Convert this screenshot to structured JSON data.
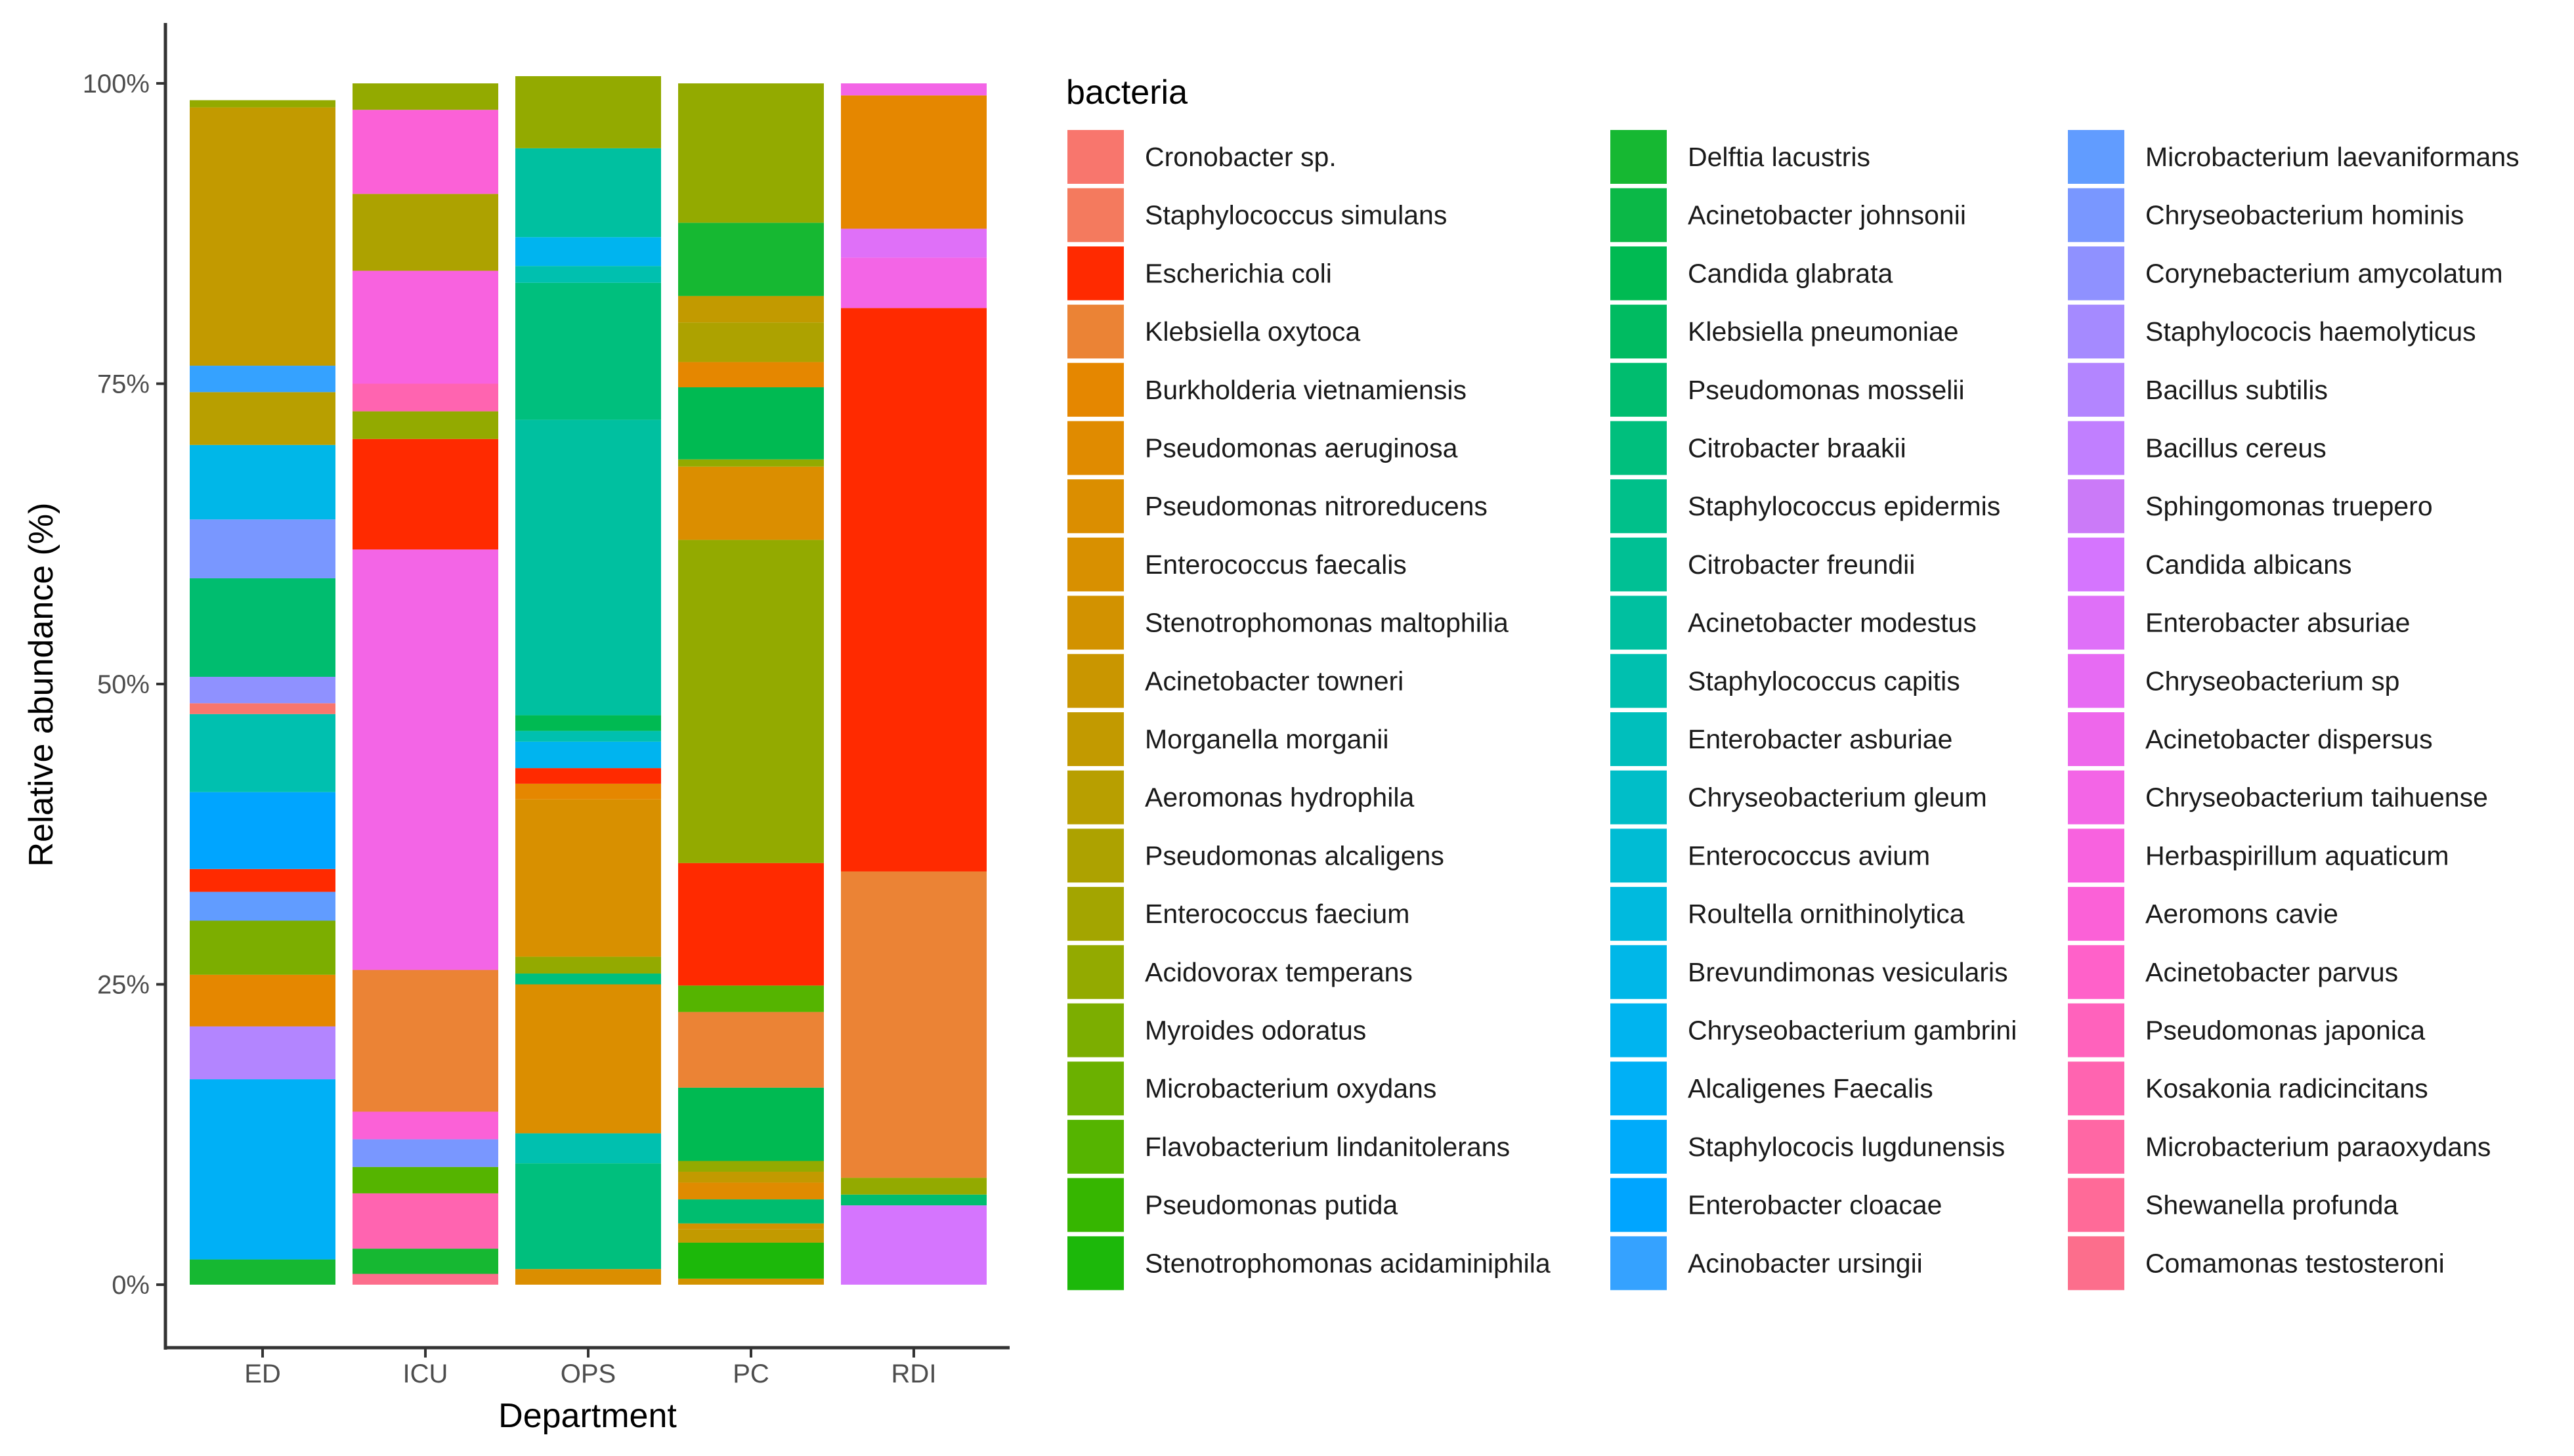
{
  "chart_data": {
    "type": "bar",
    "stacked": true,
    "title": "",
    "xlabel": "Department",
    "ylabel": "Relative abundance (%)",
    "ylim": [
      0,
      100
    ],
    "yticks": [
      0,
      25,
      50,
      75,
      100
    ],
    "ytick_labels": [
      "0%",
      "25%",
      "50%",
      "75%",
      "100%"
    ],
    "categories": [
      "ED",
      "ICU",
      "OPS",
      "PC",
      "RDI"
    ],
    "legend_title": "bacteria",
    "legend": [
      {
        "name": "Cronobacter sp.",
        "color": "#F8766D"
      },
      {
        "name": "Staphylococcus simulans",
        "color": "#F47A5E"
      },
      {
        "name": "Escherichia coli",
        "color": "#FF2A00"
      },
      {
        "name": "Klebsiella oxytoca",
        "color": "#EB8335"
      },
      {
        "name": "Burkholderia vietnamiensis",
        "color": "#E58700"
      },
      {
        "name": "Pseudomonas aeruginosa",
        "color": "#E08B00"
      },
      {
        "name": "Pseudomonas nitroreducens",
        "color": "#DB8E00"
      },
      {
        "name": "Enterococcus faecalis",
        "color": "#D89000"
      },
      {
        "name": "Stenotrophomonas maltophilia",
        "color": "#D29200"
      },
      {
        "name": "Acinetobacter towneri",
        "color": "#C99600"
      },
      {
        "name": "Morganella morganii",
        "color": "#C29A00"
      },
      {
        "name": "Aeromonas hydrophila",
        "color": "#B89F00"
      },
      {
        "name": "Pseudomonas alcaligens",
        "color": "#ADA200"
      },
      {
        "name": "Enterococcus faecium",
        "color": "#A3A500"
      },
      {
        "name": "Acidovorax temperans",
        "color": "#93AA00"
      },
      {
        "name": "Myroides odoratus",
        "color": "#7CAE00"
      },
      {
        "name": "Microbacterium oxydans",
        "color": "#6BB100"
      },
      {
        "name": "Flavobacterium lindanitolerans",
        "color": "#55B400"
      },
      {
        "name": "Pseudomonas putida",
        "color": "#36B600"
      },
      {
        "name": "Stenotrophomonas acidaminiphila",
        "color": "#1CB80A"
      },
      {
        "name": "Delftia lacustris",
        "color": "#16B832"
      },
      {
        "name": "Acinetobacter johnsonii",
        "color": "#0BB847"
      },
      {
        "name": "Candida glabrata",
        "color": "#00BA52"
      },
      {
        "name": "Klebsiella pneumoniae",
        "color": "#00BB61"
      },
      {
        "name": "Pseudomonas mosselii",
        "color": "#00BD6F"
      },
      {
        "name": "Citrobacter braakii",
        "color": "#00BF7D"
      },
      {
        "name": "Staphylococcus epidermis",
        "color": "#00C08A"
      },
      {
        "name": "Citrobacter freundii",
        "color": "#00C094"
      },
      {
        "name": "Acinetobacter modestus",
        "color": "#00C0A0"
      },
      {
        "name": "Staphylococcus capitis",
        "color": "#00C0AF"
      },
      {
        "name": "Enterobacter asburiae",
        "color": "#00BFBC"
      },
      {
        "name": "Chryseobacterium gleum",
        "color": "#00BEC8"
      },
      {
        "name": "Enterococcus avium",
        "color": "#00BCD4"
      },
      {
        "name": "Roultella ornithinolytica",
        "color": "#00BADE"
      },
      {
        "name": "Brevundimonas vesicularis",
        "color": "#00B7E8"
      },
      {
        "name": "Chryseobacterium gambrini",
        "color": "#00B4EF"
      },
      {
        "name": "Alcaligenes Faecalis",
        "color": "#00B0F6"
      },
      {
        "name": "Staphylococis lugdunensis",
        "color": "#00ABFA"
      },
      {
        "name": "Enterobacter cloacae",
        "color": "#00A5FF"
      },
      {
        "name": "Acinobacter ursingii",
        "color": "#35A2FF"
      },
      {
        "name": "Microbacterium laevaniformans",
        "color": "#619CFF"
      },
      {
        "name": "Chryseobacterium hominis",
        "color": "#7997FF"
      },
      {
        "name": "Corynebacterium amycolatum",
        "color": "#8F91FF"
      },
      {
        "name": "Staphylococis haemolyticus",
        "color": "#A58AFF"
      },
      {
        "name": "Bacillus subtilis",
        "color": "#B385FF"
      },
      {
        "name": "Bacillus cereus",
        "color": "#C17FFF"
      },
      {
        "name": "Sphingomonas truepero",
        "color": "#CB7AF8"
      },
      {
        "name": "Candida albicans",
        "color": "#D575FE"
      },
      {
        "name": "Enterobacter absuriae",
        "color": "#DF70F8"
      },
      {
        "name": "Chryseobacterium sp",
        "color": "#E76BF3"
      },
      {
        "name": "Acinetobacter dispersus",
        "color": "#EE67EB"
      },
      {
        "name": "Chryseobacterium taihuense",
        "color": "#F365E6"
      },
      {
        "name": "Herbaspirillum aquaticum",
        "color": "#F862DF"
      },
      {
        "name": "Aeromons cavie",
        "color": "#FB61D7"
      },
      {
        "name": "Acinetobacter parvus",
        "color": "#FF61C9"
      },
      {
        "name": "Pseudomonas japonica",
        "color": "#FF62BC"
      },
      {
        "name": "Kosakonia radicincitans",
        "color": "#FF64B0"
      },
      {
        "name": "Microbacterium paraoxydans",
        "color": "#FF67A4"
      },
      {
        "name": "Shewanella profunda",
        "color": "#FF6A98"
      },
      {
        "name": "Comamonas testosteroni",
        "color": "#FC6E8C"
      }
    ],
    "bars": [
      {
        "category": "ED",
        "segments": [
          {
            "taxon": "Delftia lacustris",
            "value": 2.1
          },
          {
            "taxon": "Alcaligenes Faecalis",
            "value": 15.0
          },
          {
            "taxon": "Bacillus subtilis",
            "value": 4.4
          },
          {
            "taxon": "Burkholderia vietnamiensis",
            "value": 4.3
          },
          {
            "taxon": "Myroides odoratus",
            "value": 4.5
          },
          {
            "taxon": "Microbacterium laevaniformans",
            "value": 2.4
          },
          {
            "taxon": "Escherichia coli",
            "value": 1.9
          },
          {
            "taxon": "Enterobacter cloacae",
            "value": 6.4
          },
          {
            "taxon": "Staphylococcus capitis",
            "value": 6.5
          },
          {
            "taxon": "Cronobacter sp.",
            "value": 0.9
          },
          {
            "taxon": "Corynebacterium amycolatum",
            "value": 2.2
          },
          {
            "taxon": "Pseudomonas mosselii",
            "value": 8.2
          },
          {
            "taxon": "Chryseobacterium hominis",
            "value": 4.9
          },
          {
            "taxon": "Brevundimonas vesicularis",
            "value": 6.2
          },
          {
            "taxon": "Aeromonas hydrophila",
            "value": 4.4
          },
          {
            "taxon": "Acinobacter ursingii",
            "value": 2.2
          },
          {
            "taxon": "Morganella morganii",
            "value": 21.5
          },
          {
            "taxon": "Acidovorax temperans",
            "value": 0.6
          }
        ]
      },
      {
        "category": "ICU",
        "segments": [
          {
            "taxon": "Comamonas testosteroni",
            "value": 0.9
          },
          {
            "taxon": "Delftia lacustris",
            "value": 2.1
          },
          {
            "taxon": "Kosakonia radicincitans",
            "value": 4.6
          },
          {
            "taxon": "Flavobacterium lindanitolerans",
            "value": 2.2
          },
          {
            "taxon": "Chryseobacterium hominis",
            "value": 2.3
          },
          {
            "taxon": "Aeromons cavie",
            "value": 2.3
          },
          {
            "taxon": "Klebsiella oxytoca",
            "value": 11.8
          },
          {
            "taxon": "Chryseobacterium taihuense",
            "value": 35.0
          },
          {
            "taxon": "Escherichia coli",
            "value": 9.2
          },
          {
            "taxon": "Acidovorax temperans",
            "value": 2.3
          },
          {
            "taxon": "Kosakonia radicincitans",
            "value": 2.3
          },
          {
            "taxon": "Herbaspirillum aquaticum",
            "value": 9.4
          },
          {
            "taxon": "Pseudomonas alcaligens",
            "value": 6.4
          },
          {
            "taxon": "Aeromons cavie",
            "value": 7.0
          },
          {
            "taxon": "Acidovorax temperans",
            "value": 2.2
          }
        ]
      },
      {
        "category": "OPS",
        "segments": [
          {
            "taxon": "Pseudomonas nitroreducens",
            "value": 1.3
          },
          {
            "taxon": "Citrobacter braakii",
            "value": 8.8
          },
          {
            "taxon": "Staphylococcus capitis",
            "value": 2.5
          },
          {
            "taxon": "Pseudomonas nitroreducens",
            "value": 12.4
          },
          {
            "taxon": "Citrobacter braakii",
            "value": 0.9
          },
          {
            "taxon": "Acidovorax temperans",
            "value": 1.4
          },
          {
            "taxon": "Enterococcus faecalis",
            "value": 13.1
          },
          {
            "taxon": "Burkholderia vietnamiensis",
            "value": 1.3
          },
          {
            "taxon": "Escherichia coli",
            "value": 1.3
          },
          {
            "taxon": "Chryseobacterium gambrini",
            "value": 2.2
          },
          {
            "taxon": "Staphylococcus capitis",
            "value": 0.9
          },
          {
            "taxon": "Candida glabrata",
            "value": 1.3
          },
          {
            "taxon": "Acinetobacter modestus",
            "value": 24.6
          },
          {
            "taxon": "Citrobacter braakii",
            "value": 11.4
          },
          {
            "taxon": "Staphylococcus capitis",
            "value": 1.4
          },
          {
            "taxon": "Chryseobacterium gambrini",
            "value": 2.4
          },
          {
            "taxon": "Acinetobacter modestus",
            "value": 7.4
          },
          {
            "taxon": "Acidovorax temperans",
            "value": 6.0
          }
        ]
      },
      {
        "category": "PC",
        "segments": [
          {
            "taxon": "Stenotrophomonas maltophilia",
            "value": 0.5
          },
          {
            "taxon": "Stenotrophomonas acidaminiphila",
            "value": 3.0
          },
          {
            "taxon": "Morganella morganii",
            "value": 1.1
          },
          {
            "taxon": "Stenotrophomonas maltophilia",
            "value": 0.5
          },
          {
            "taxon": "Pseudomonas mosselii",
            "value": 2.0
          },
          {
            "taxon": "Pseudomonas aeruginosa",
            "value": 1.4
          },
          {
            "taxon": "Morganella morganii",
            "value": 0.9
          },
          {
            "taxon": "Acidovorax temperans",
            "value": 0.9
          },
          {
            "taxon": "Candida glabrata",
            "value": 6.1
          },
          {
            "taxon": "Klebsiella oxytoca",
            "value": 6.3
          },
          {
            "taxon": "Flavobacterium lindanitolerans",
            "value": 2.2
          },
          {
            "taxon": "Escherichia coli",
            "value": 10.2
          },
          {
            "taxon": "Acidovorax temperans",
            "value": 26.9
          },
          {
            "taxon": "Pseudomonas nitroreducens",
            "value": 6.1
          },
          {
            "taxon": "Acidovorax temperans",
            "value": 0.6
          },
          {
            "taxon": "Candida glabrata",
            "value": 6.0
          },
          {
            "taxon": "Burkholderia vietnamiensis",
            "value": 2.1
          },
          {
            "taxon": "Pseudomonas alcaligens",
            "value": 3.3
          },
          {
            "taxon": "Morganella morganii",
            "value": 2.2
          },
          {
            "taxon": "Delftia lacustris",
            "value": 6.1
          },
          {
            "taxon": "Acidovorax temperans",
            "value": 11.6
          }
        ]
      },
      {
        "category": "RDI",
        "segments": [
          {
            "taxon": "Candida albicans",
            "value": 6.6
          },
          {
            "taxon": "Pseudomonas mosselii",
            "value": 0.9
          },
          {
            "taxon": "Acidovorax temperans",
            "value": 1.4
          },
          {
            "taxon": "Klebsiella oxytoca",
            "value": 25.5
          },
          {
            "taxon": "Escherichia coli",
            "value": 46.9
          },
          {
            "taxon": "Chryseobacterium taihuense",
            "value": 4.2
          },
          {
            "taxon": "Enterobacter absuriae",
            "value": 2.4
          },
          {
            "taxon": "Burkholderia vietnamiensis",
            "value": 11.1
          },
          {
            "taxon": "Chryseobacterium taihuense",
            "value": 1.0
          }
        ]
      }
    ]
  }
}
